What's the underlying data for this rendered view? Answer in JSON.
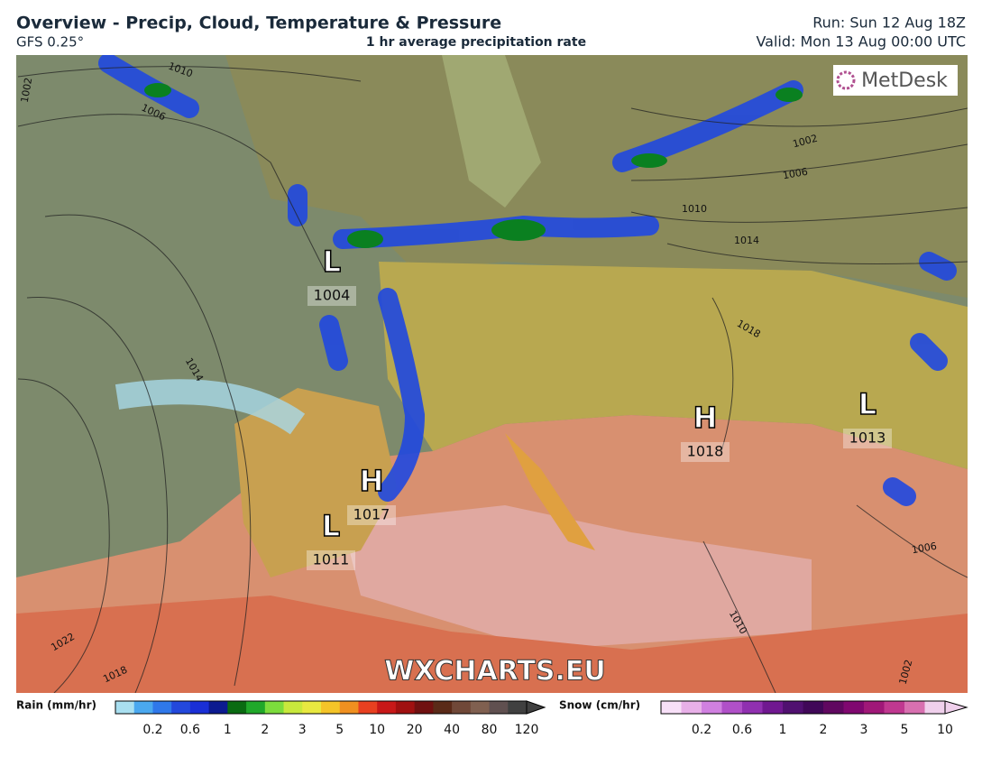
{
  "header": {
    "title": "Overview - Precip, Cloud, Temperature & Pressure",
    "model": "GFS 0.25°",
    "subtitle": "1 hr average precipitation rate",
    "run": "Run: Sun 12 Aug 18Z",
    "valid": "Valid: Mon 13 Aug 00:00 UTC"
  },
  "map": {
    "logo": "MetDesk",
    "watermark": "WXCHARTS.EU",
    "pressure_centers": [
      {
        "symbol": "L",
        "label": "1004"
      },
      {
        "symbol": "H",
        "label": "1017"
      },
      {
        "symbol": "L",
        "label": "1011"
      },
      {
        "symbol": "H",
        "label": "1018"
      },
      {
        "symbol": "L",
        "label": "1013"
      }
    ],
    "isobar_labels": [
      "1010",
      "1006",
      "1002",
      "1002",
      "1006",
      "1010",
      "1014",
      "1018",
      "1014",
      "1022",
      "1018",
      "1010",
      "1006",
      "1002"
    ]
  },
  "legend": {
    "rain": {
      "title": "Rain (mm/hr)",
      "labels": [
        "0.2",
        "0.6",
        "1",
        "2",
        "3",
        "5",
        "10",
        "20",
        "40",
        "80",
        "120"
      ],
      "colors": [
        "#a9dff0",
        "#4aa8ef",
        "#2f78ea",
        "#2348dc",
        "#1a2fd6",
        "#0c1a90",
        "#0a6b12",
        "#20a82a",
        "#7cdc3c",
        "#c8e83c",
        "#e8e840",
        "#f4c428",
        "#f09020",
        "#e84020",
        "#c81818",
        "#a01010",
        "#701010",
        "#5a2a18",
        "#704838",
        "#806050",
        "#605050",
        "#404040"
      ]
    },
    "snow": {
      "title": "Snow (cm/hr)",
      "labels": [
        "0.2",
        "0.6",
        "1",
        "2",
        "3",
        "5",
        "10"
      ],
      "colors": [
        "#f8e0f8",
        "#e8b0e8",
        "#d080e0",
        "#b050c8",
        "#9030b0",
        "#701890",
        "#501070",
        "#400858",
        "#600860",
        "#800870",
        "#a01878",
        "#c03890",
        "#d870b0",
        "#f0d0ec"
      ]
    }
  }
}
